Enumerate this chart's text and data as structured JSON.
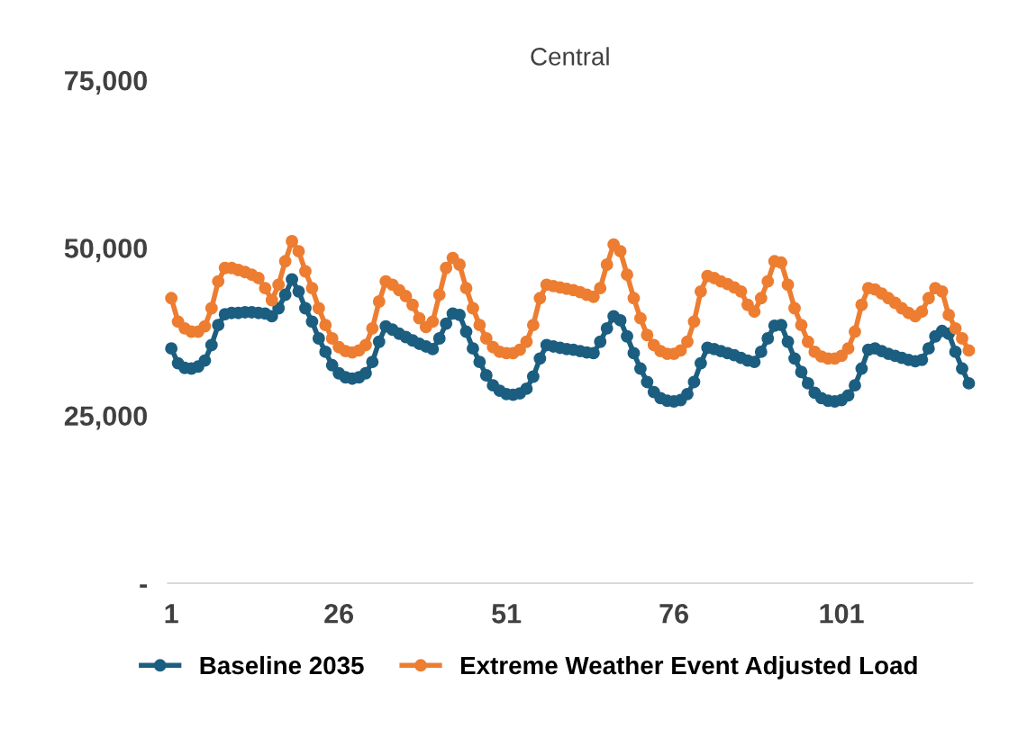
{
  "chart_data": {
    "type": "line",
    "title": "Central",
    "x": [
      1,
      2,
      3,
      4,
      5,
      6,
      7,
      8,
      9,
      10,
      11,
      12,
      13,
      14,
      15,
      16,
      17,
      18,
      19,
      20,
      21,
      22,
      23,
      24,
      25,
      26,
      27,
      28,
      29,
      30,
      31,
      32,
      33,
      34,
      35,
      36,
      37,
      38,
      39,
      40,
      41,
      42,
      43,
      44,
      45,
      46,
      47,
      48,
      49,
      50,
      51,
      52,
      53,
      54,
      55,
      56,
      57,
      58,
      59,
      60,
      61,
      62,
      63,
      64,
      65,
      66,
      67,
      68,
      69,
      70,
      71,
      72,
      73,
      74,
      75,
      76,
      77,
      78,
      79,
      80,
      81,
      82,
      83,
      84,
      85,
      86,
      87,
      88,
      89,
      90,
      91,
      92,
      93,
      94,
      95,
      96,
      97,
      98,
      99,
      100,
      101,
      102,
      103,
      104,
      105,
      106,
      107,
      108,
      109,
      110,
      111,
      112,
      113,
      114,
      115,
      116,
      117,
      118,
      119,
      120
    ],
    "series": [
      {
        "name": "Baseline 2035",
        "color": "#1b5e80",
        "values": [
          35000,
          32800,
          32100,
          32000,
          32300,
          33200,
          35500,
          38500,
          40100,
          40300,
          40300,
          40400,
          40400,
          40300,
          40200,
          39800,
          41000,
          43000,
          45300,
          43500,
          41000,
          39000,
          36500,
          34500,
          32500,
          31300,
          30700,
          30500,
          30700,
          31300,
          33000,
          36000,
          38300,
          37800,
          37200,
          36700,
          36200,
          35700,
          35300,
          34900,
          36500,
          38700,
          40200,
          40000,
          37500,
          35000,
          33000,
          31000,
          29500,
          28700,
          28200,
          28100,
          28300,
          29000,
          30800,
          33500,
          35500,
          35300,
          35100,
          34900,
          34800,
          34600,
          34400,
          34300,
          36000,
          38000,
          39800,
          39200,
          36800,
          34300,
          32000,
          30000,
          28500,
          27600,
          27200,
          27100,
          27300,
          28200,
          30000,
          32800,
          35100,
          34900,
          34600,
          34300,
          34000,
          33600,
          33200,
          33000,
          34500,
          36500,
          38400,
          38500,
          36000,
          33500,
          31500,
          29800,
          28400,
          27600,
          27200,
          27100,
          27300,
          28000,
          29500,
          32000,
          34800,
          35000,
          34600,
          34200,
          33900,
          33600,
          33300,
          33100,
          33300,
          35000,
          36800,
          37600,
          37200,
          34500,
          32000,
          29800
        ]
      },
      {
        "name": "Extreme Weather Event Adjusted Load",
        "color": "#ed7d31",
        "values": [
          42500,
          39000,
          38000,
          37500,
          37500,
          38300,
          41000,
          45000,
          47000,
          47000,
          46700,
          46400,
          46000,
          45500,
          44000,
          42200,
          44500,
          48000,
          51000,
          49500,
          46500,
          44000,
          41000,
          38500,
          36500,
          35200,
          34600,
          34400,
          34700,
          35500,
          38000,
          42000,
          45000,
          44500,
          43700,
          42800,
          41500,
          39500,
          38200,
          39000,
          43000,
          47000,
          48500,
          47500,
          44000,
          41000,
          38500,
          36500,
          35200,
          34500,
          34300,
          34300,
          34800,
          36000,
          38500,
          42500,
          44500,
          44300,
          44100,
          43900,
          43700,
          43400,
          43000,
          42700,
          44000,
          47500,
          50500,
          49500,
          46000,
          42500,
          39500,
          37000,
          35500,
          34600,
          34200,
          34200,
          34700,
          36000,
          39000,
          43500,
          45800,
          45500,
          45000,
          44600,
          44100,
          43500,
          41500,
          40500,
          42500,
          45000,
          48000,
          47800,
          44500,
          41000,
          38500,
          36000,
          34500,
          33800,
          33500,
          33500,
          33900,
          35000,
          37500,
          41500,
          44000,
          43800,
          43200,
          42500,
          41800,
          41000,
          40300,
          39800,
          40500,
          42500,
          44000,
          43500,
          40000,
          38000,
          36500,
          34700
        ]
      }
    ],
    "xlim": [
      0.5,
      120.5
    ],
    "xticks": [
      1,
      26,
      51,
      76,
      101
    ],
    "ylim": [
      0,
      75000
    ],
    "yticks": [
      {
        "value": 0,
        "label": "-"
      },
      {
        "value": 25000,
        "label": "25,000"
      },
      {
        "value": 50000,
        "label": "50,000"
      },
      {
        "value": 75000,
        "label": "75,000"
      }
    ],
    "marker": "circle",
    "line_style": "solid",
    "legend": "bottom",
    "grid": false
  }
}
